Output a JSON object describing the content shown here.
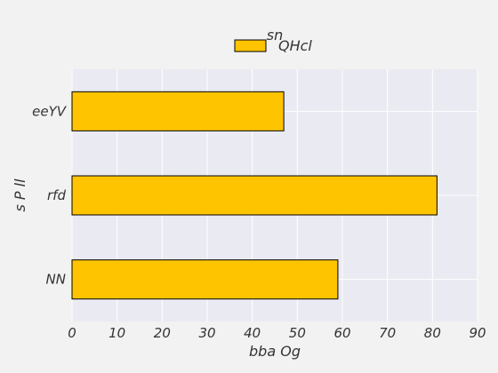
{
  "chart_data": {
    "type": "bar",
    "orientation": "horizontal",
    "categories": [
      "NN",
      "rfd",
      "eeYV"
    ],
    "series": [
      {
        "name": "QHcl",
        "values": [
          59,
          81,
          47
        ],
        "color": "#ffc400"
      }
    ],
    "xlabel": "bba Og",
    "ylabel": "s P ll",
    "xlim": [
      0,
      90
    ],
    "xticks": [
      0,
      10,
      20,
      30,
      40,
      50,
      60,
      70,
      80,
      90
    ],
    "legend": {
      "title": "sn",
      "placement": "top-center"
    },
    "grid": true,
    "colors": {
      "background": "#f2f2f2",
      "plot_background": "#eaeaf2",
      "grid": "#ffffff",
      "bar_edge": "#000000"
    }
  }
}
